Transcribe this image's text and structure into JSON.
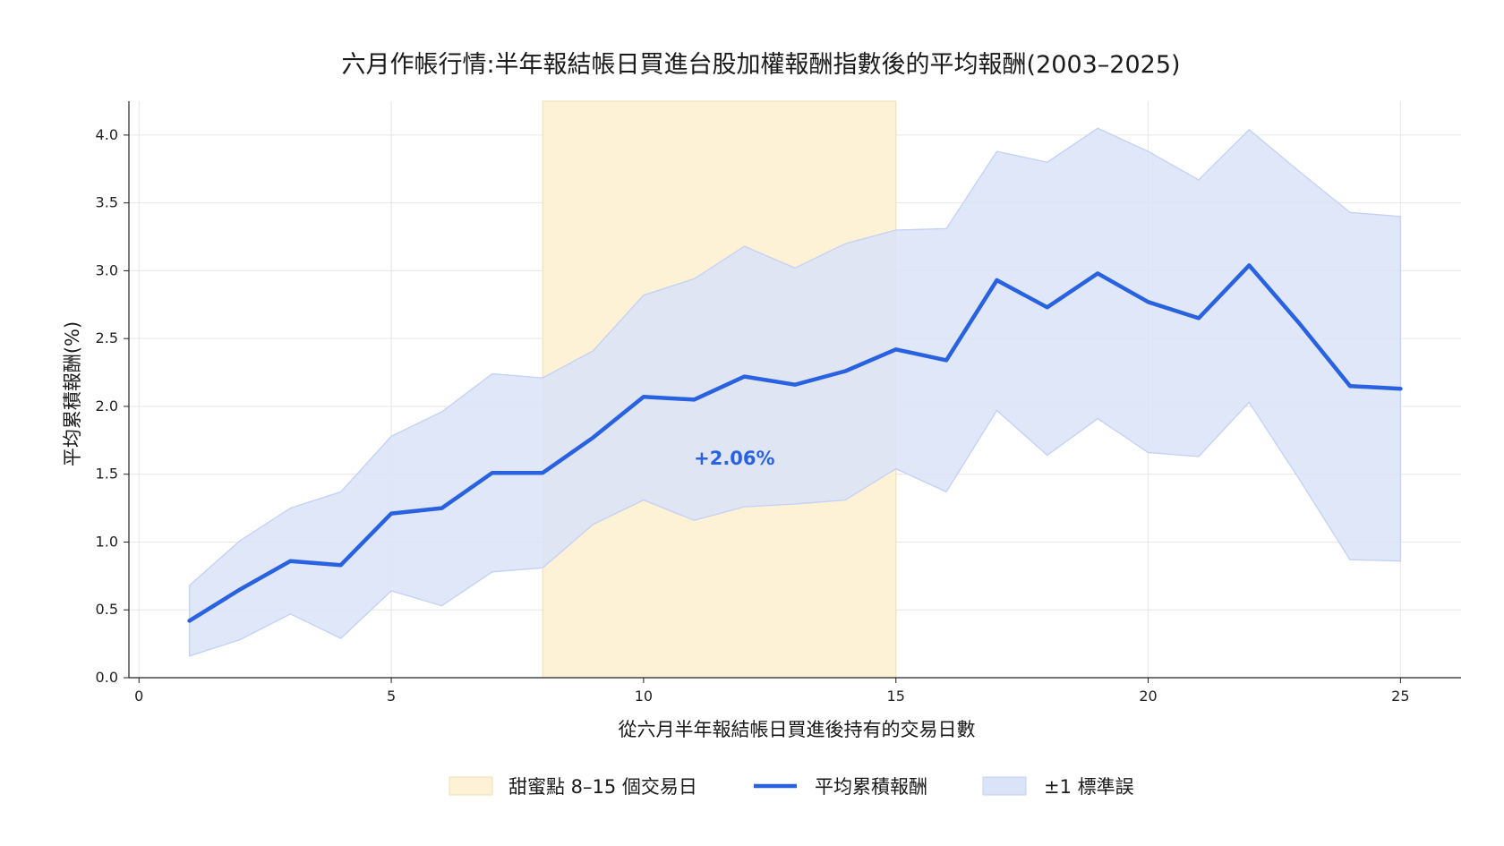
{
  "chart_data": {
    "type": "line",
    "title": "六月作帳行情:半年報結帳日買進台股加權報酬指數後的平均報酬(2003–2025)",
    "xlabel": "從六月半年報結帳日買進後持有的交易日數",
    "ylabel": "平均累積報酬(%)",
    "xlim": [
      -0.2,
      26.2
    ],
    "ylim": [
      0,
      4.25
    ],
    "xticks": [
      0,
      5,
      10,
      15,
      20,
      25
    ],
    "yticks": [
      0.0,
      0.5,
      1.0,
      1.5,
      2.0,
      2.5,
      3.0,
      3.5,
      4.0
    ],
    "xtick_labels": [
      "0",
      "5",
      "10",
      "15",
      "20",
      "25"
    ],
    "ytick_labels": [
      "0.0",
      "0.5",
      "1.0",
      "1.5",
      "2.0",
      "2.5",
      "3.0",
      "3.5",
      "4.0"
    ],
    "grid": true,
    "legend_position": "bottom-center",
    "x": [
      1,
      2,
      3,
      4,
      5,
      6,
      7,
      8,
      9,
      10,
      11,
      12,
      13,
      14,
      15,
      16,
      17,
      18,
      19,
      20,
      21,
      22,
      23,
      24,
      25
    ],
    "series": [
      {
        "name": "平均累積報酬",
        "color": "#2962e0",
        "values": [
          0.42,
          0.65,
          0.86,
          0.83,
          1.21,
          1.25,
          1.51,
          1.51,
          1.77,
          2.07,
          2.05,
          2.22,
          2.16,
          2.26,
          2.42,
          2.34,
          2.93,
          2.73,
          2.98,
          2.77,
          2.65,
          3.04,
          2.61,
          2.15,
          2.13
        ]
      }
    ],
    "band": {
      "name": "±1 標準誤",
      "color": "#dae3f8",
      "edge_color": "#c2d1f4",
      "upper": [
        0.68,
        1.01,
        1.25,
        1.37,
        1.78,
        1.96,
        2.24,
        2.21,
        2.41,
        2.82,
        2.94,
        3.18,
        3.02,
        3.2,
        3.3,
        3.31,
        3.88,
        3.8,
        4.05,
        3.88,
        3.67,
        4.04,
        3.73,
        3.43,
        3.4
      ],
      "lower": [
        0.16,
        0.28,
        0.47,
        0.29,
        0.64,
        0.53,
        0.78,
        0.81,
        1.13,
        1.31,
        1.16,
        1.26,
        1.28,
        1.31,
        1.54,
        1.37,
        1.97,
        1.64,
        1.91,
        1.66,
        1.63,
        2.03,
        1.46,
        0.87,
        0.86
      ]
    },
    "highlight": {
      "name": "甜蜜點 8–15 個交易日",
      "x_start": 8,
      "x_end": 15,
      "color": "#fdf1d6",
      "edge_color": "#eedfb3"
    },
    "annotations": [
      {
        "text": "+2.06%",
        "x": 11.8,
        "y": 1.57,
        "color": "#2962e0"
      }
    ]
  }
}
